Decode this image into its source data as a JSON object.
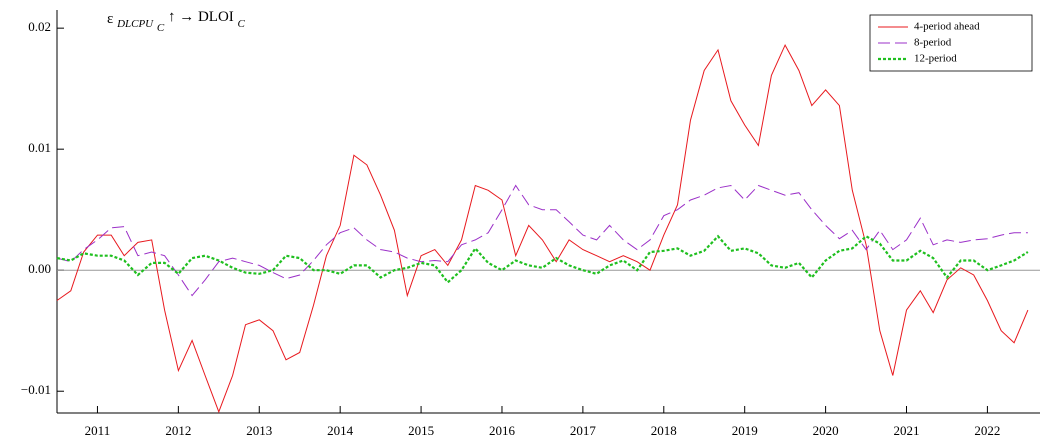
{
  "chart_data": {
    "type": "line",
    "title_parts": [
      "ε",
      "DLCPU",
      "C",
      "↑ → DLOI",
      "C"
    ],
    "x": [
      2010.5,
      2010.67,
      2010.83,
      2011,
      2011.17,
      2011.33,
      2011.5,
      2011.67,
      2011.83,
      2012,
      2012.17,
      2012.33,
      2012.5,
      2012.67,
      2012.83,
      2013,
      2013.17,
      2013.33,
      2013.5,
      2013.67,
      2013.83,
      2014,
      2014.17,
      2014.33,
      2014.5,
      2014.67,
      2014.83,
      2015,
      2015.17,
      2015.33,
      2015.5,
      2015.67,
      2015.83,
      2016,
      2016.17,
      2016.33,
      2016.5,
      2016.67,
      2016.83,
      2017,
      2017.17,
      2017.33,
      2017.5,
      2017.67,
      2017.83,
      2018,
      2018.17,
      2018.33,
      2018.5,
      2018.67,
      2018.83,
      2019,
      2019.17,
      2019.33,
      2019.5,
      2019.67,
      2019.83,
      2020,
      2020.17,
      2020.33,
      2020.5,
      2020.67,
      2020.83,
      2021,
      2021.17,
      2021.33,
      2021.5,
      2021.67,
      2021.83,
      2022,
      2022.17,
      2022.33,
      2022.5
    ],
    "series": [
      {
        "name": "4-period ahead",
        "color": "#e8191e",
        "style": "solid",
        "values": [
          -0.0025,
          -0.0017,
          0.0015,
          0.0029,
          0.0029,
          0.0012,
          0.0023,
          0.0025,
          -0.0033,
          -0.0083,
          -0.0058,
          -0.0087,
          -0.0117,
          -0.0087,
          -0.0045,
          -0.0041,
          -0.005,
          -0.0074,
          -0.0068,
          -0.0029,
          0.0012,
          0.0037,
          0.0095,
          0.0087,
          0.0062,
          0.0033,
          -0.0021,
          0.0012,
          0.0017,
          0.0004,
          0.0025,
          0.007,
          0.0066,
          0.0058,
          0.0012,
          0.0037,
          0.0025,
          0.0007,
          0.0025,
          0.0017,
          0.0012,
          0.0007,
          0.0012,
          0.0007,
          0,
          0.0029,
          0.0054,
          0.0124,
          0.0165,
          0.0182,
          0.014,
          0.012,
          0.0103,
          0.0161,
          0.0186,
          0.0165,
          0.0136,
          0.0149,
          0.0136,
          0.0066,
          0.0021,
          -0.005,
          -0.0087,
          -0.0033,
          -0.0017,
          -0.0035,
          -0.0008,
          0.0002,
          -0.0004,
          -0.0025,
          -0.005,
          -0.006,
          -0.0033
        ]
      },
      {
        "name": "8-period",
        "color": "#9b30c8",
        "style": "dashed",
        "values": [
          0.001,
          0.0007,
          0.0017,
          0.0025,
          0.0035,
          0.0036,
          0.0012,
          0.0015,
          0.0012,
          -0.0004,
          -0.0021,
          -0.0008,
          0.0007,
          0.001,
          0.0007,
          0.0004,
          -0.0002,
          -0.0007,
          -0.0004,
          0.0008,
          0.0021,
          0.0031,
          0.0035,
          0.0025,
          0.0017,
          0.0015,
          0.001,
          0.0007,
          0.0008,
          0.0007,
          0.0021,
          0.0025,
          0.0031,
          0.005,
          0.007,
          0.0054,
          0.005,
          0.005,
          0.004,
          0.0029,
          0.0025,
          0.0037,
          0.0025,
          0.0017,
          0.0025,
          0.0045,
          0.005,
          0.0058,
          0.0062,
          0.0068,
          0.007,
          0.0058,
          0.007,
          0.0066,
          0.0062,
          0.0064,
          0.005,
          0.0037,
          0.0026,
          0.0033,
          0.0017,
          0.0033,
          0.0017,
          0.0025,
          0.0043,
          0.0021,
          0.0025,
          0.0023,
          0.0025,
          0.0026,
          0.0029,
          0.0031,
          0.0031
        ]
      },
      {
        "name": "12-period",
        "color": "#1fbf1f",
        "style": "dotted",
        "values": [
          0.001,
          0.0008,
          0.0014,
          0.0012,
          0.0012,
          0.0008,
          -0.0004,
          0.0006,
          0.0006,
          -0.0003,
          0.001,
          0.0012,
          0.0008,
          0.0002,
          -0.0002,
          -0.0003,
          0,
          0.0012,
          0.001,
          0,
          0,
          -0.0003,
          0.0004,
          0.0004,
          -0.0006,
          0,
          0.0002,
          0.0006,
          0.0004,
          -0.001,
          0,
          0.0018,
          0.0006,
          0,
          0.0008,
          0.0004,
          0.0002,
          0.001,
          0.0004,
          0,
          -0.0003,
          0.0004,
          0.0008,
          0,
          0.0015,
          0.0016,
          0.0018,
          0.0012,
          0.0016,
          0.0028,
          0.0016,
          0.0018,
          0.0014,
          0.0004,
          0.0002,
          0.0006,
          -0.0006,
          0.0008,
          0.0016,
          0.0018,
          0.0028,
          0.0022,
          0.0008,
          0.0008,
          0.0016,
          0.001,
          -0.0006,
          0.0008,
          0.0008,
          0,
          0.0004,
          0.0008,
          0.0015
        ]
      }
    ],
    "xlim": [
      2010.5,
      2022.65
    ],
    "xticks": [
      2011,
      2012,
      2013,
      2014,
      2015,
      2016,
      2017,
      2018,
      2019,
      2020,
      2021,
      2022
    ],
    "ylim": [
      -0.0118,
      0.0215
    ],
    "yticks": [
      {
        "value": -0.01,
        "label": "−0.01"
      },
      {
        "value": 0,
        "label": "0.00"
      },
      0.01,
      0.02
    ],
    "zero_line": 0,
    "legend": "top-right"
  }
}
